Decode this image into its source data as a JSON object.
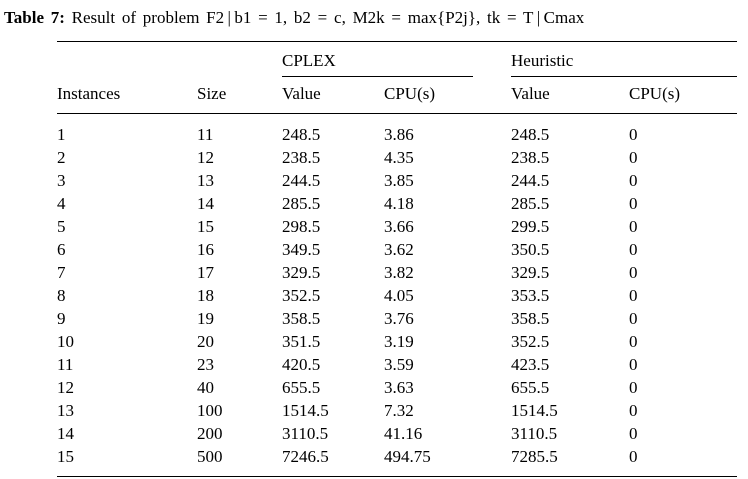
{
  "caption": {
    "label": "Table 7:",
    "text": "Result of problem F2 | b1 = 1, b2 = c, M2k = max{P2j}, tk = T | Cmax"
  },
  "table": {
    "group_headers": [
      {
        "label": "CPLEX"
      },
      {
        "label": "Heuristic"
      }
    ],
    "columns": [
      "Instances",
      "Size",
      "Value",
      "CPU(s)",
      "Value",
      "CPU(s)"
    ],
    "rows": [
      [
        "1",
        "11",
        "248.5",
        "3.86",
        "248.5",
        "0"
      ],
      [
        "2",
        "12",
        "238.5",
        "4.35",
        "238.5",
        "0"
      ],
      [
        "3",
        "13",
        "244.5",
        "3.85",
        "244.5",
        "0"
      ],
      [
        "4",
        "14",
        "285.5",
        "4.18",
        "285.5",
        "0"
      ],
      [
        "5",
        "15",
        "298.5",
        "3.66",
        "299.5",
        "0"
      ],
      [
        "6",
        "16",
        "349.5",
        "3.62",
        "350.5",
        "0"
      ],
      [
        "7",
        "17",
        "329.5",
        "3.82",
        "329.5",
        "0"
      ],
      [
        "8",
        "18",
        "352.5",
        "4.05",
        "353.5",
        "0"
      ],
      [
        "9",
        "19",
        "358.5",
        "3.76",
        "358.5",
        "0"
      ],
      [
        "10",
        "20",
        "351.5",
        "3.19",
        "352.5",
        "0"
      ],
      [
        "11",
        "23",
        "420.5",
        "3.59",
        "423.5",
        "0"
      ],
      [
        "12",
        "40",
        "655.5",
        "3.63",
        "655.5",
        "0"
      ],
      [
        "13",
        "100",
        "1514.5",
        "7.32",
        "1514.5",
        "0"
      ],
      [
        "14",
        "200",
        "3110.5",
        "41.16",
        "3110.5",
        "0"
      ],
      [
        "15",
        "500",
        "7246.5",
        "494.75",
        "7285.5",
        "0"
      ]
    ]
  }
}
